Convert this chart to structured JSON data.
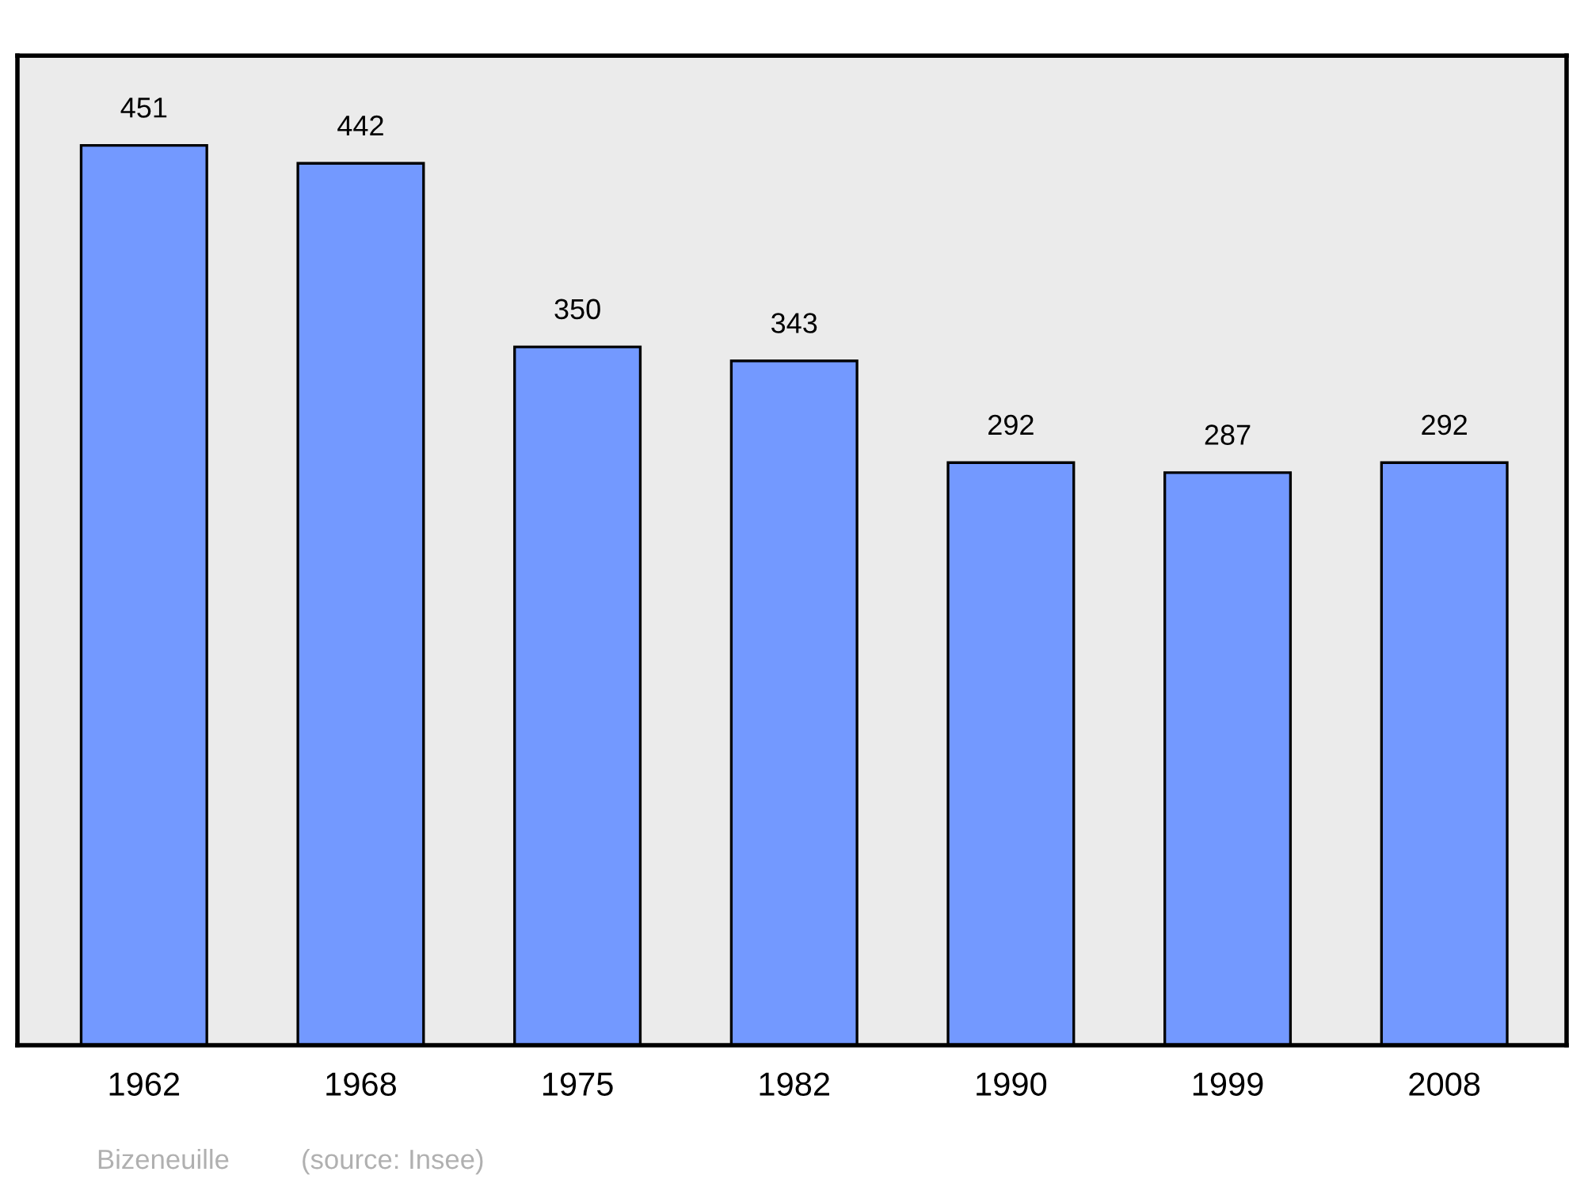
{
  "chart_data": {
    "type": "bar",
    "categories": [
      "1962",
      "1968",
      "1975",
      "1982",
      "1990",
      "1999",
      "2008"
    ],
    "values": [
      451,
      442,
      350,
      343,
      292,
      287,
      292
    ],
    "color": "#7399ff",
    "ylim": [
      0,
      496
    ],
    "data_labels": true,
    "grid": false,
    "legend": false,
    "tick_labels": "x",
    "annotations": [
      "Bizeneuille",
      "(source: Insee)"
    ]
  }
}
